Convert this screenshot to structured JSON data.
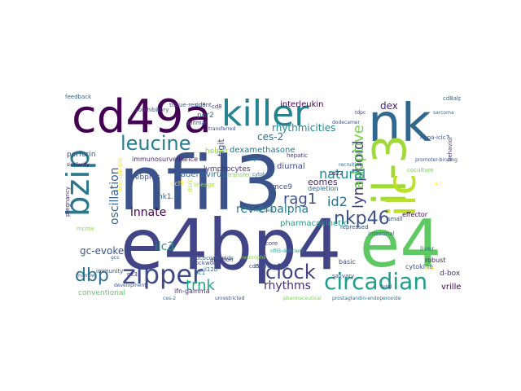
{
  "words": [
    {
      "text": "nfil3",
      "color": "#3b528b"
    },
    {
      "text": "e4bp4",
      "color": "#414487"
    },
    {
      "text": "nk",
      "color": "#31688e"
    },
    {
      "text": "e4",
      "color": "#5ec962"
    },
    {
      "text": "killer",
      "color": "#26828e"
    },
    {
      "text": "cd49a",
      "color": "#440154"
    },
    {
      "text": "il-3",
      "color": "#a0da39"
    },
    {
      "text": "ilc",
      "color": "#bddf26"
    },
    {
      "text": "bzip",
      "color": "#2a788e"
    },
    {
      "text": "zipper",
      "color": "#3e4a89"
    },
    {
      "text": "circadian",
      "color": "#1f9e89"
    },
    {
      "text": "leucine",
      "color": "#287d8e"
    },
    {
      "text": "nkp46",
      "color": "#3b528b"
    },
    {
      "text": "lymphoid",
      "color": "#433e85"
    },
    {
      "text": "adoptive",
      "color": "#7ad151"
    },
    {
      "text": "clock",
      "color": "#414487"
    },
    {
      "text": "dbp",
      "color": "#2c728e"
    },
    {
      "text": "trnk",
      "color": "#22a884"
    },
    {
      "text": "rag1",
      "color": "#3b528b"
    },
    {
      "text": "id2",
      "color": "#2c728e"
    },
    {
      "text": "oscillation",
      "color": "#355f8d"
    },
    {
      "text": "natural",
      "color": "#21918c"
    },
    {
      "text": "rev-erbalpha",
      "color": "#2a788e"
    },
    {
      "text": "innate",
      "color": "#440154"
    },
    {
      "text": "ilc3",
      "color": "#21918c"
    },
    {
      "text": "rhythms",
      "color": "#472d7b"
    },
    {
      "text": "ces-2",
      "color": "#2c728e"
    },
    {
      "text": "rhythmicities",
      "color": "#25858e"
    },
    {
      "text": "tigit",
      "color": "#3b528b"
    },
    {
      "text": "dex",
      "color": "#482475"
    },
    {
      "text": "dexamethasone",
      "color": "#2a788e"
    },
    {
      "text": "eomes",
      "color": "#482878"
    },
    {
      "text": "pharmacokinetic",
      "color": "#1f9e89"
    },
    {
      "text": "gc-evoked",
      "color": "#3b528b"
    },
    {
      "text": "adenovirus",
      "color": "#31688e"
    },
    {
      "text": "interleukin",
      "color": "#440154"
    },
    {
      "text": "diurnal",
      "color": "#3e4a89"
    },
    {
      "text": "lymphocytes",
      "color": "#46337e"
    },
    {
      "text": "perforin",
      "color": "#3b528b"
    },
    {
      "text": "conventional",
      "color": "#5ec962"
    },
    {
      "text": "immunosurveillance",
      "color": "#482475"
    },
    {
      "text": "mce9",
      "color": "#3b528b"
    },
    {
      "text": "nk1.1",
      "color": "#31688e"
    },
    {
      "text": "dsrc",
      "color": "#b5de2b"
    },
    {
      "text": "ebpres",
      "color": "#3b528b"
    },
    {
      "text": "per2",
      "color": "#31688e"
    },
    {
      "text": "ifn-gamma",
      "color": "#482878"
    },
    {
      "text": "vrille",
      "color": "#440154"
    },
    {
      "text": "d-box",
      "color": "#46337e"
    },
    {
      "text": "robust",
      "color": "#481467"
    },
    {
      "text": "cytokine",
      "color": "#3b528b"
    },
    {
      "text": "liver",
      "color": "#2c728e"
    },
    {
      "text": "intestinal",
      "color": "#31688e"
    },
    {
      "text": "basic",
      "color": "#3e4a89"
    },
    {
      "text": "depletion",
      "color": "#31688e"
    },
    {
      "text": "hepatic",
      "color": "#46337e"
    },
    {
      "text": "core",
      "color": "#46337e"
    },
    {
      "text": "il12b",
      "color": "#31688e"
    },
    {
      "text": "cd22",
      "color": "#482475"
    },
    {
      "text": "helper",
      "color": "#8fd744"
    },
    {
      "text": "ilc1",
      "color": "#2c728e"
    },
    {
      "text": "abiation",
      "color": "#46337e"
    },
    {
      "text": "immunity",
      "color": "#3b528b"
    },
    {
      "text": "mcmv",
      "color": "#8fd744"
    },
    {
      "text": "clockwork",
      "color": "#3b528b"
    },
    {
      "text": "effector",
      "color": "#440154"
    },
    {
      "text": "feedback",
      "color": "#31688e"
    },
    {
      "text": "transfer",
      "color": "#7ad151"
    },
    {
      "text": "cd8alpha",
      "color": "#31688e"
    },
    {
      "text": "cd8",
      "color": "#31688e"
    },
    {
      "text": "pinmal",
      "color": "#3b528b"
    },
    {
      "text": "behavior",
      "color": "#46337e"
    },
    {
      "text": "repressed",
      "color": "#3b528b"
    },
    {
      "text": "coculture",
      "color": "#7ad151"
    },
    {
      "text": "hepa-iclc7",
      "color": "#3b528b"
    },
    {
      "text": "ccl5",
      "color": "#fde725"
    },
    {
      "text": "small",
      "color": "#3b528b"
    },
    {
      "text": "lineage",
      "color": "#a0da39"
    },
    {
      "text": "pregnancy",
      "color": "#46337e"
    },
    {
      "text": "salivary",
      "color": "#3b528b"
    },
    {
      "text": "cd8",
      "color": "#46337e"
    },
    {
      "text": "nk3",
      "color": "#482475"
    },
    {
      "text": "cd5",
      "color": "#3b528b"
    },
    {
      "text": "dreispirale",
      "color": "#fde725"
    },
    {
      "text": "clps",
      "color": "#2c728e"
    },
    {
      "text": "interactome",
      "color": "#3b528b"
    },
    {
      "text": "itie",
      "color": "#fde725"
    },
    {
      "text": "glucocorticoids",
      "color": "#31688e"
    },
    {
      "text": "coinhibitory",
      "color": "#3b528b"
    },
    {
      "text": "prostaglandin-endoperoxide",
      "color": "#2c728e"
    },
    {
      "text": "neutrophil",
      "color": "#8fd744"
    },
    {
      "text": "marrow",
      "color": "#31688e"
    },
    {
      "text": "gcs",
      "color": "#31688e"
    },
    {
      "text": "pharmaceutical",
      "color": "#7ad151"
    },
    {
      "text": "unrestricted",
      "color": "#3b528b"
    },
    {
      "text": "ces-2",
      "color": "#31688e"
    },
    {
      "text": "similarity",
      "color": "#440154"
    },
    {
      "text": "tissue-resident",
      "color": "#3b528b"
    },
    {
      "text": "promoter-binding",
      "color": "#3b528b"
    },
    {
      "text": "recruiting",
      "color": "#31688e"
    },
    {
      "text": "transferred",
      "color": "#3e4a89"
    },
    {
      "text": "cytolytic",
      "color": "#2c728e"
    },
    {
      "text": "dodecamer",
      "color": "#3b528b"
    },
    {
      "text": "nfil3-deficient",
      "color": "#1f9e89"
    },
    {
      "text": "il-7",
      "color": "#fde725"
    },
    {
      "text": "tdpc",
      "color": "#46337e"
    },
    {
      "text": "sarcoma",
      "color": "#31688e"
    },
    {
      "text": "rescued",
      "color": "#2c728e"
    },
    {
      "text": "development",
      "color": "#3b528b"
    },
    {
      "text": "fetal",
      "color": "#3b528b"
    }
  ]
}
